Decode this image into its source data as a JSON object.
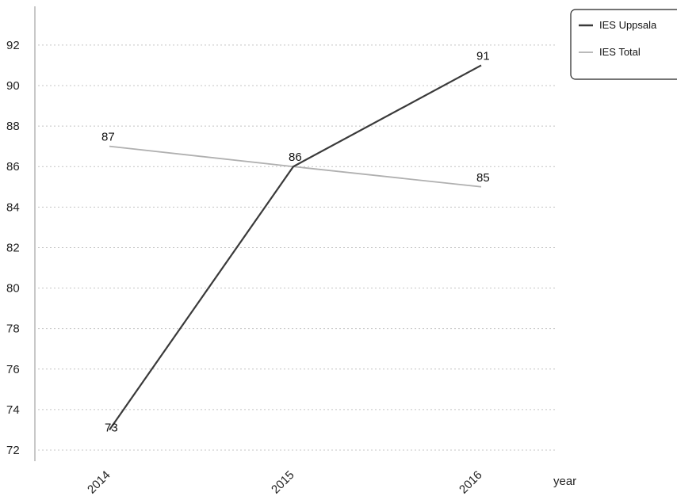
{
  "chart_data": {
    "type": "line",
    "title": "",
    "xlabel": "year",
    "ylabel": "",
    "categories": [
      "2014",
      "2015",
      "2016"
    ],
    "ylim": [
      72,
      93
    ],
    "yticks": [
      72,
      74,
      76,
      78,
      80,
      82,
      84,
      86,
      88,
      90,
      92
    ],
    "grid": true,
    "legend_position": "top-right",
    "series": [
      {
        "name": "IES Uppsala",
        "values": [
          73,
          86,
          91
        ],
        "labels": [
          "73",
          "86",
          "91"
        ],
        "color": "#3a3a3a"
      },
      {
        "name": "IES Total",
        "values": [
          87,
          86,
          85
        ],
        "labels": [
          "87",
          "",
          "85"
        ],
        "color": "#b0b0b0"
      }
    ]
  }
}
